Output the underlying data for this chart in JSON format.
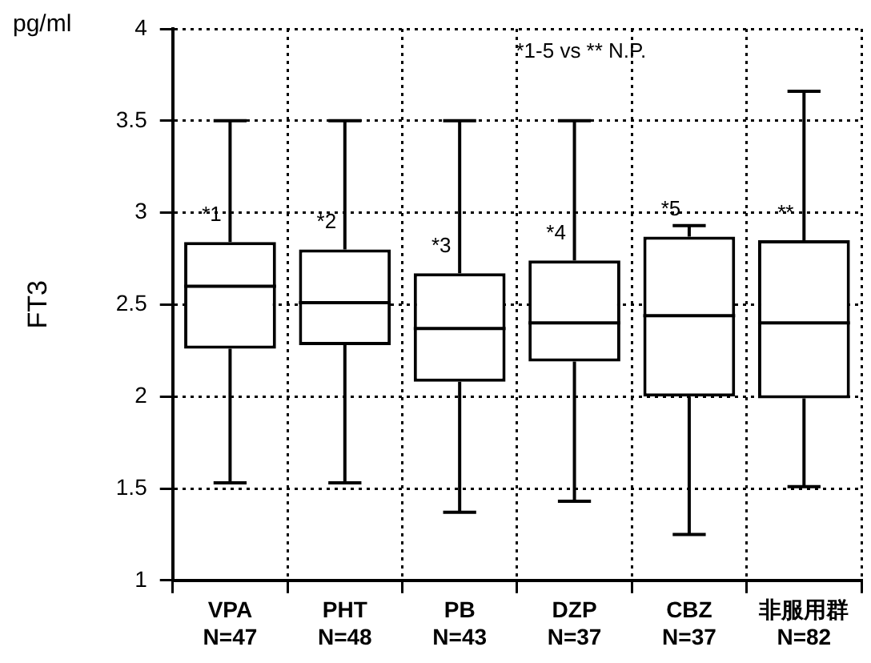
{
  "chart_data": {
    "type": "box",
    "ylabel": "FT3",
    "categories": [
      "VPA\nN=47",
      "PHT\nN=48",
      "PB\nN=43",
      "DZP\nN=37",
      "CBZ\nN=37",
      "非服用群\nN=82"
    ],
    "boxes": [
      {
        "low": 1.53,
        "q1": 2.26,
        "median": 2.6,
        "q3": 2.84,
        "high": 3.5
      },
      {
        "low": 1.53,
        "q1": 2.28,
        "median": 2.51,
        "q3": 2.8,
        "high": 3.5
      },
      {
        "low": 1.37,
        "q1": 2.08,
        "median": 2.37,
        "q3": 2.67,
        "high": 3.5
      },
      {
        "low": 1.43,
        "q1": 2.19,
        "median": 2.4,
        "q3": 2.74,
        "high": 3.5
      },
      {
        "low": 1.25,
        "q1": 2.0,
        "median": 2.44,
        "q3": 2.87,
        "high": 2.93
      },
      {
        "low": 1.51,
        "q1": 1.99,
        "median": 2.4,
        "q3": 2.85,
        "high": 3.66
      }
    ],
    "colors": [
      "#000000",
      "#000000",
      "#000000",
      "#000000",
      "#000000",
      "#000000"
    ],
    "ylim": [
      1,
      4
    ],
    "yticks": [
      1,
      1.5,
      2,
      2.5,
      3,
      3.5,
      4
    ],
    "grid": true,
    "annotations": [
      "pg/ml",
      "*1-5 vs ** N.P.",
      {
        "text": "*1",
        "x": "VPA\nN=47",
        "y": 2.93
      },
      {
        "text": "*2",
        "x": "PHT\nN=48",
        "y": 2.89
      },
      {
        "text": "*3",
        "x": "PB\nN=43",
        "y": 2.76
      },
      {
        "text": "*4",
        "x": "DZP\nN=37",
        "y": 2.83
      },
      {
        "text": "*5",
        "x": "CBZ\nN=37",
        "y": 2.96
      },
      {
        "text": "**",
        "x": "非服用群\nN=82",
        "y": 2.94
      }
    ]
  }
}
